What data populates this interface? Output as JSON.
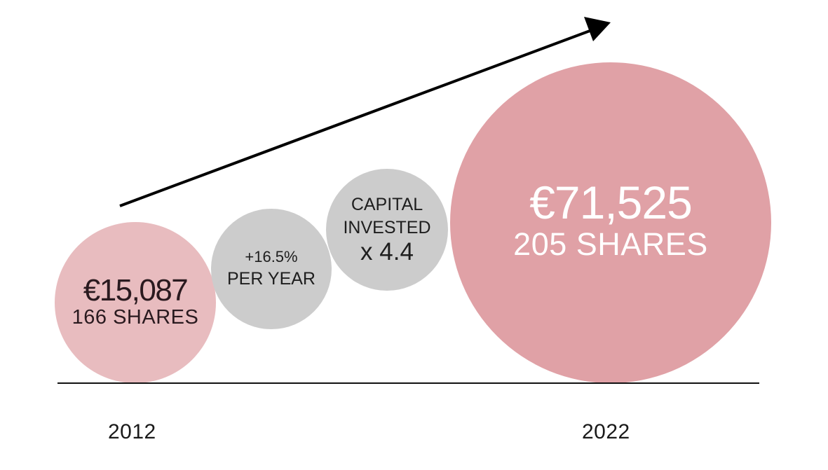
{
  "chart_data": {
    "type": "bubble",
    "title": "",
    "points": [
      {
        "year": "2012",
        "value_label": "€15,087",
        "shares_label": "166 SHARES",
        "value": 15087,
        "shares": 166,
        "color": "#e8bcbf"
      },
      {
        "year": "2022",
        "value_label": "€71,525",
        "shares_label": "205 SHARES",
        "value": 71525,
        "shares": 205,
        "color": "#e0a1a6"
      }
    ],
    "annotations": [
      {
        "line1": "+16.5%",
        "line2": "PER YEAR"
      },
      {
        "line1": "CAPITAL",
        "line2": "INVESTED",
        "line3": "x 4.4"
      }
    ],
    "x_axis_labels": [
      "2012",
      "2022"
    ],
    "trend_arrow": true,
    "colors": {
      "start_bubble": "#e8bcbf",
      "end_bubble": "#e0a1a6",
      "annotation_bubble": "#cccccc",
      "arrow": "#000000"
    }
  }
}
